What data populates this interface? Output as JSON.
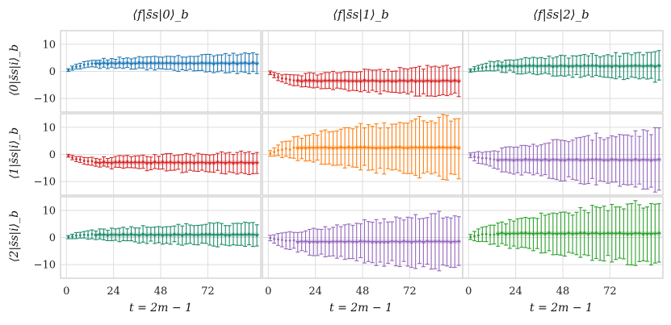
{
  "chart_data": {
    "type": "scatter",
    "layout": "3x3 grid of error-bar panels with shared axes",
    "column_titles": [
      "⟨f|s̄s|0⟩_b",
      "⟨f|s̄s|1⟩_b",
      "⟨f|s̄s|2⟩_b"
    ],
    "row_labels": [
      "⟨0|s̄s|i⟩_b",
      "⟨1|s̄s|i⟩_b",
      "⟨2|s̄s|i⟩_b"
    ],
    "xlabel": "t = 2m − 1",
    "xticks": [
      "0",
      "24",
      "48",
      "72"
    ],
    "yticks": [
      "10",
      "0",
      "−10"
    ],
    "xlim": [
      -3,
      99
    ],
    "ylim": [
      -15,
      15
    ],
    "panels": [
      {
        "row": 0,
        "col": 0,
        "color": "#1f77b4",
        "start": 0.0,
        "plateau": 3.0,
        "err_end": 3.5,
        "curve": "rise"
      },
      {
        "row": 0,
        "col": 1,
        "color": "#d62728",
        "start": 0.0,
        "plateau": -3.5,
        "err_end": 5.5,
        "curve": "drop"
      },
      {
        "row": 0,
        "col": 2,
        "color": "#1b8a6b",
        "start": 0.0,
        "plateau": 2.0,
        "err_end": 5.0,
        "curve": "rise"
      },
      {
        "row": 1,
        "col": 0,
        "color": "#d62728",
        "start": 0.0,
        "plateau": -3.0,
        "err_end": 4.0,
        "curve": "drop"
      },
      {
        "row": 1,
        "col": 1,
        "color": "#ff7f0e",
        "start": 0.0,
        "plateau": 2.5,
        "err_end": 11.5,
        "curve": "rise"
      },
      {
        "row": 1,
        "col": 2,
        "color": "#9467bd",
        "start": 0.0,
        "plateau": -2.0,
        "err_end": 10.5,
        "curve": "drop"
      },
      {
        "row": 2,
        "col": 0,
        "color": "#1b8a6b",
        "start": 0.0,
        "plateau": 1.0,
        "err_end": 4.5,
        "curve": "rise"
      },
      {
        "row": 2,
        "col": 1,
        "color": "#9467bd",
        "start": 0.0,
        "plateau": -1.5,
        "err_end": 10.5,
        "curve": "drop"
      },
      {
        "row": 2,
        "col": 2,
        "color": "#2ca02c",
        "start": 0.0,
        "plateau": 1.5,
        "err_end": 11.5,
        "curve": "rise"
      }
    ]
  }
}
